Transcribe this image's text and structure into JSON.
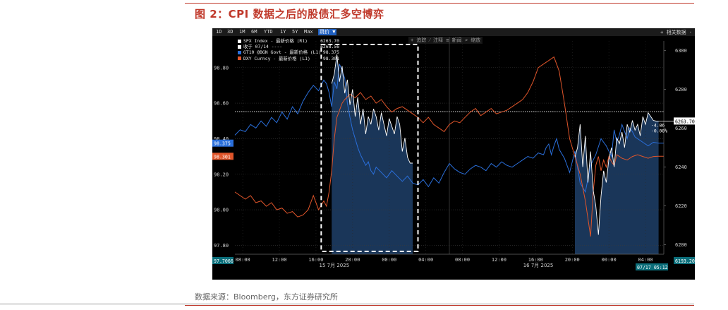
{
  "figure": {
    "title": "图 2：CPI 数据之后的股债汇多空博弈",
    "source": "数据来源：Bloomberg，东方证券研究所"
  },
  "toolbar": {
    "ranges": [
      "1D",
      "3D",
      "1M",
      "6M",
      "YTD",
      "1Y",
      "5Y",
      "Max"
    ],
    "active": "跳价 ▼",
    "right": "+ 相关数据 ·",
    "middle": "+ 追踪  ⁄ 注释  ≡ 新闻  ⌕ 缩放"
  },
  "legend": [
    {
      "label": "SPX Index - 最新价格 (R1)",
      "value": "6263.70",
      "color": "#ffffff"
    },
    {
      "label": "收于 07/14 ----",
      "value": "6268.56",
      "color": "#ffffff"
    },
    {
      "label": "GT10 @BGN Govt - 最新价格 (L1)",
      "value": "98.375",
      "color": "#2a6fdb"
    },
    {
      "label": "DXY Curncy - 最新价格 (L1)",
      "value": "98.301",
      "color": "#e0552a"
    }
  ],
  "colors": {
    "spx": "#ffffff",
    "gt10": "#2a6fdb",
    "dxy": "#e0552a",
    "area": "#1d3c63",
    "ref": "#ffffff"
  },
  "chart_data": {
    "type": "line",
    "x_ticks": [
      "08:00",
      "12:00",
      "16:00",
      "20:00",
      "00:00",
      "04:00",
      "08:00",
      "12:00",
      "16:00",
      "20:00",
      "00:00",
      "04:00"
    ],
    "date_labels": [
      "15 7月 2025",
      "16 7月 2025"
    ],
    "left_axis": {
      "ticks": [
        "98.80",
        "98.60",
        "98.40",
        "98.20",
        "98.00",
        "97.80"
      ],
      "range": [
        97.75,
        98.95
      ]
    },
    "right_axis": {
      "ticks": [
        "6300",
        "6280",
        "6260",
        "6240",
        "6220",
        "6200"
      ],
      "range": [
        6195,
        6305
      ]
    },
    "reference": {
      "label": "6268.56",
      "value": 6268.56
    },
    "left_tags": [
      {
        "text": "98.375",
        "color": "#2a6fdb"
      },
      {
        "text": "98.301",
        "color": "#e0552a"
      },
      {
        "text": "97.7066",
        "color": "#0b6e7a"
      }
    ],
    "right_tags": [
      {
        "text": "6263.70",
        "color": "#ffffff"
      },
      {
        "text": "6193.20",
        "color": "#0b6e7a"
      },
      {
        "text": "07/17 05:12",
        "color": "#0b6e7a"
      }
    ],
    "change": [
      "-4.86",
      "-0.08%"
    ],
    "series": [
      {
        "name": "GT10 @BGN Govt - 最新价格 (L1)",
        "axis": "left",
        "segments": [
          {
            "x": [
              0,
              2,
              4,
              6,
              8,
              10,
              12,
              14,
              16,
              18,
              20,
              22,
              24,
              26,
              28,
              30,
              32,
              34,
              35,
              36,
              37,
              38,
              39,
              40,
              41,
              42,
              43,
              44,
              45,
              46,
              47,
              48,
              49,
              50,
              51,
              52,
              53,
              54,
              56,
              58,
              60,
              62,
              64,
              66,
              68,
              70,
              72,
              74,
              76,
              78,
              80,
              82,
              84,
              86,
              88,
              90,
              92,
              94,
              96,
              98,
              100,
              102,
              104,
              106,
              108,
              110,
              112,
              114,
              116,
              118,
              119,
              120,
              121,
              122,
              123,
              124,
              126,
              128,
              130,
              132,
              134,
              136,
              138,
              140,
              142,
              144,
              145,
              146,
              147,
              148,
              149,
              150,
              151,
              152,
              153,
              154,
              156,
              158,
              160,
              162,
              164
            ],
            "y": [
              98.42,
              98.45,
              98.44,
              98.48,
              98.46,
              98.5,
              98.47,
              98.52,
              98.49,
              98.55,
              98.51,
              98.58,
              98.54,
              98.61,
              98.66,
              98.7,
              98.67,
              98.73,
              98.71,
              98.66,
              98.58,
              98.72,
              98.68,
              98.82,
              98.78,
              98.74,
              98.6,
              98.52,
              98.45,
              98.4,
              98.35,
              98.31,
              98.28,
              98.25,
              98.27,
              98.22,
              98.2,
              98.24,
              98.21,
              98.18,
              98.22,
              98.19,
              98.16,
              98.19,
              98.15,
              98.14,
              98.17,
              98.13,
              98.18,
              98.15,
              98.21,
              98.26,
              98.23,
              98.21,
              98.2,
              98.23,
              98.25,
              98.24,
              98.22,
              98.26,
              98.24,
              98.27,
              98.25,
              98.24,
              98.26,
              98.28,
              98.3,
              98.29,
              98.32,
              98.31,
              98.35,
              98.37,
              98.31,
              98.36,
              98.4,
              98.34,
              98.29,
              98.21,
              98.33,
              98.15,
              98.1,
              98.25,
              98.31,
              98.4,
              98.36,
              98.3,
              98.45,
              98.38,
              98.42,
              98.48,
              98.44,
              98.4,
              98.46,
              98.44,
              98.41,
              98.4,
              98.38,
              98.36,
              98.38,
              98.375,
              98.375
            ]
          }
        ]
      },
      {
        "name": "DXY Curncy - 最新价格 (L1)",
        "axis": "left",
        "segments": [
          {
            "x": [
              0,
              2,
              4,
              6,
              8,
              10,
              12,
              14,
              16,
              18,
              20,
              22,
              24,
              26,
              28,
              30,
              32,
              34,
              35,
              36,
              37,
              38,
              39,
              40,
              41,
              42,
              44,
              46,
              48,
              50,
              52,
              54,
              56,
              58,
              60,
              62,
              64,
              66,
              68,
              70,
              72,
              74,
              76,
              78,
              80,
              82,
              84,
              86,
              88,
              90,
              92,
              94,
              96,
              98,
              100,
              102,
              104,
              106,
              108,
              110,
              112,
              114,
              116,
              118,
              120,
              122,
              124,
              126,
              128,
              130,
              132,
              134,
              136,
              137,
              138,
              139,
              140,
              141,
              142,
              143,
              144,
              145,
              146,
              148,
              150,
              152,
              154,
              156,
              158,
              160,
              162,
              164
            ],
            "y": [
              98.1,
              98.08,
              98.06,
              98.08,
              98.04,
              98.05,
              98.02,
              98.04,
              98.0,
              98.01,
              97.98,
              97.99,
              97.96,
              97.97,
              98.0,
              98.08,
              98.0,
              98.05,
              98.02,
              98.1,
              98.22,
              98.4,
              98.52,
              98.56,
              98.6,
              98.62,
              98.65,
              98.63,
              98.66,
              98.62,
              98.64,
              98.6,
              98.62,
              98.58,
              98.55,
              98.57,
              98.58,
              98.56,
              98.54,
              98.52,
              98.49,
              98.52,
              98.48,
              98.46,
              98.44,
              98.48,
              98.5,
              98.49,
              98.52,
              98.55,
              98.57,
              98.53,
              98.55,
              98.57,
              98.54,
              98.55,
              98.56,
              98.58,
              98.6,
              98.62,
              98.66,
              98.72,
              98.8,
              98.82,
              98.84,
              98.86,
              98.78,
              98.6,
              98.4,
              98.3,
              98.2,
              98.05,
              97.85,
              98.1,
              98.25,
              98.3,
              98.22,
              98.28,
              98.24,
              98.3,
              98.27,
              98.25,
              98.31,
              98.29,
              98.28,
              98.3,
              98.31,
              98.3,
              98.29,
              98.3,
              98.301,
              98.301
            ]
          }
        ]
      },
      {
        "name": "SPX Index - 最新价格 (R1)",
        "axis": "right",
        "segments": [
          {
            "x": [
              37,
              38,
              39,
              40,
              41,
              42,
              43,
              44,
              45,
              46,
              47,
              48,
              49,
              50,
              51,
              52,
              53,
              54,
              55,
              56,
              57,
              58,
              59,
              60,
              61,
              62,
              63,
              64,
              65,
              66,
              67,
              68
            ],
            "y": [
              6283,
              6288,
              6298,
              6284,
              6292,
              6278,
              6285,
              6272,
              6280,
              6266,
              6276,
              6262,
              6270,
              6257,
              6266,
              6262,
              6270,
              6266,
              6259,
              6268,
              6262,
              6256,
              6265,
              6261,
              6257,
              6266,
              6262,
              6248,
              6255,
              6245,
              6242,
              6242
            ]
          },
          {
            "x": [
              130,
              131,
              132,
              133,
              134,
              135,
              136,
              137,
              138,
              139,
              140,
              141,
              142,
              143,
              144,
              145,
              146,
              147,
              148,
              149,
              150,
              151,
              152,
              153,
              154,
              155,
              156,
              157,
              158,
              159,
              160,
              161,
              162
            ],
            "y": [
              6245,
              6250,
              6262,
              6240,
              6256,
              6232,
              6248,
              6228,
              6220,
              6205,
              6225,
              6238,
              6232,
              6244,
              6250,
              6240,
              6255,
              6252,
              6258,
              6250,
              6262,
              6258,
              6264,
              6259,
              6262,
              6256,
              6266,
              6262,
              6268,
              6266,
              6264,
              6263.7,
              6263.7
            ]
          }
        ]
      }
    ]
  }
}
